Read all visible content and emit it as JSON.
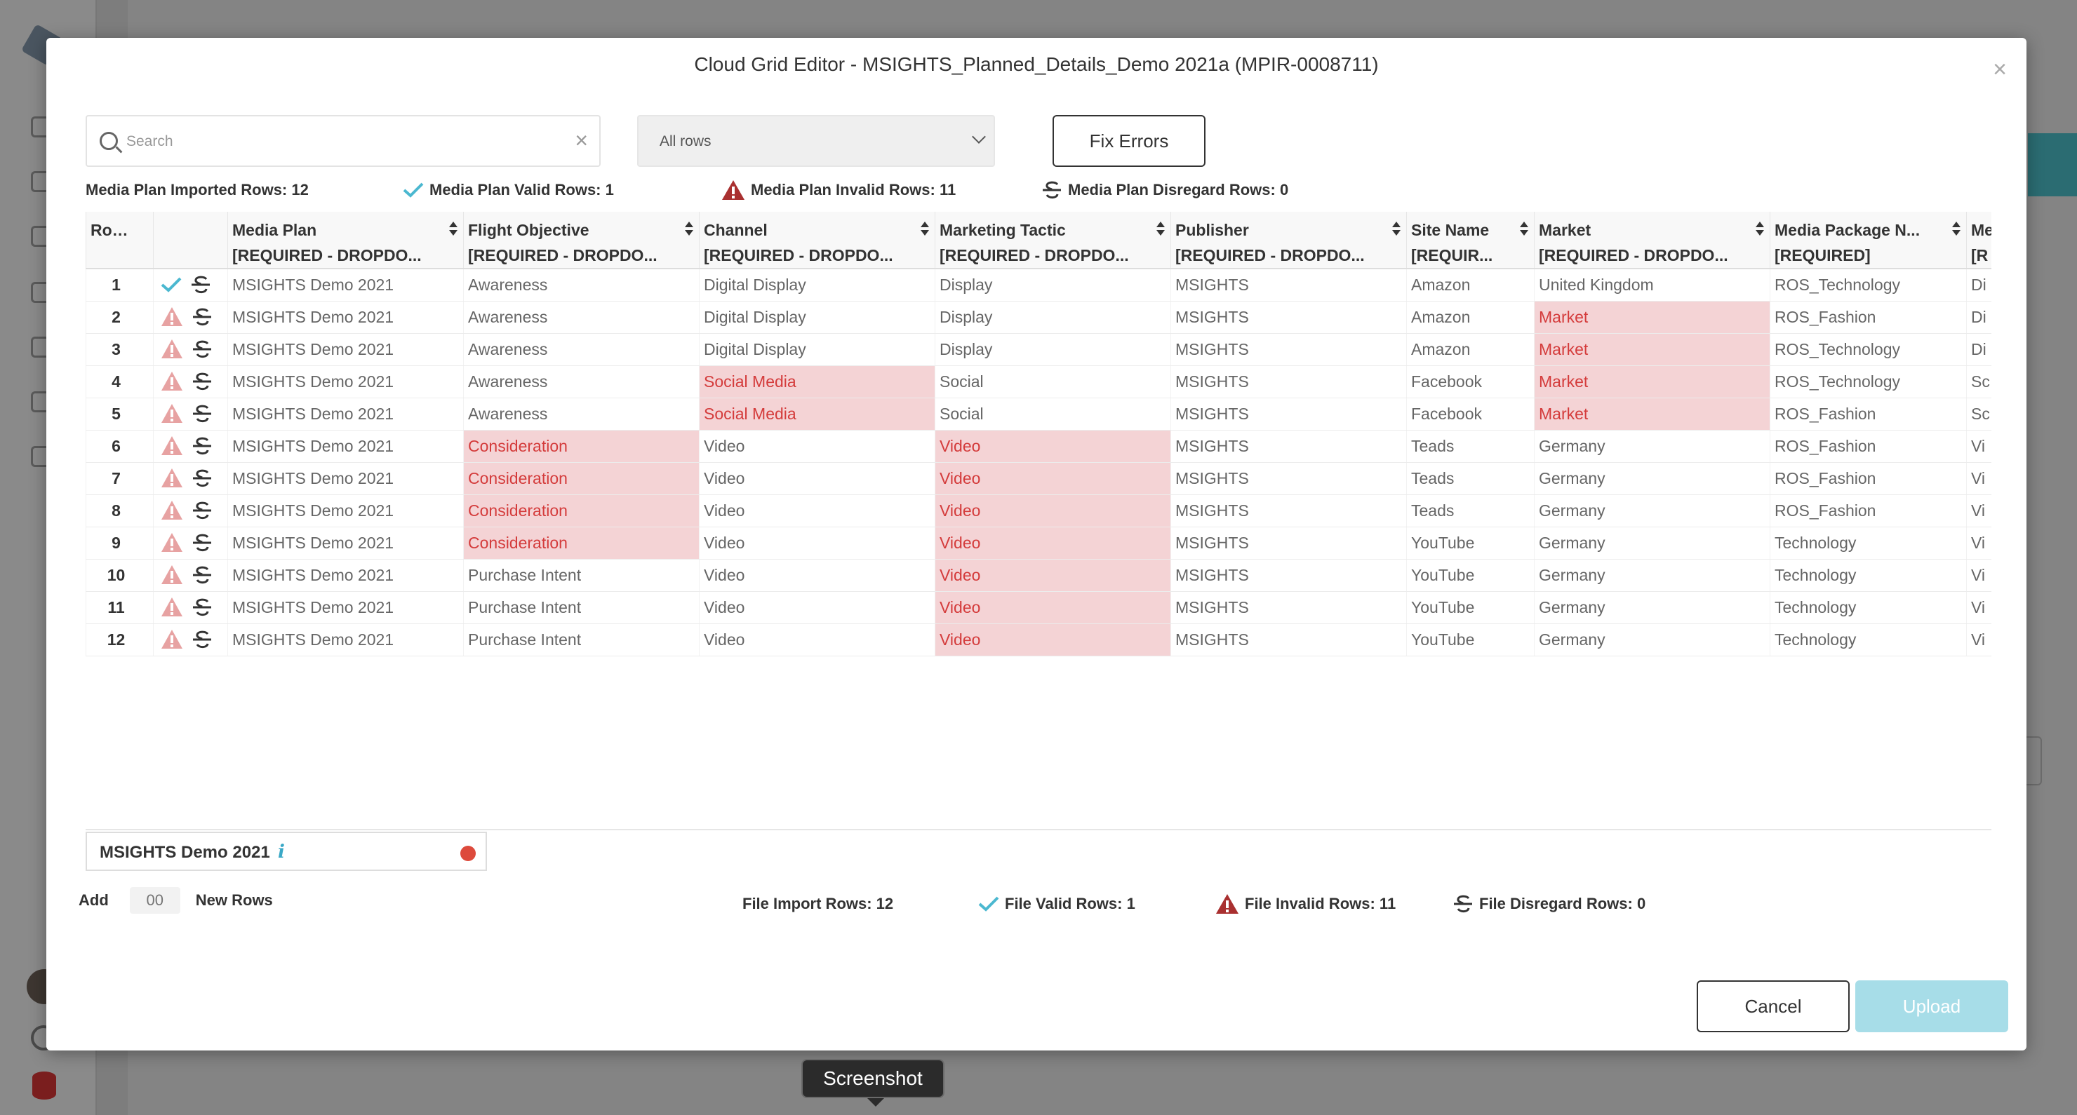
{
  "modal": {
    "title": "Cloud Grid Editor - MSIGHTS_Planned_Details_Demo 2021a (MPIR-0008711)",
    "close_label": "×"
  },
  "search": {
    "placeholder": "Search",
    "value": "",
    "clear_label": "×"
  },
  "filter": {
    "selected": "All rows"
  },
  "fix_errors_label": "Fix Errors",
  "summary": {
    "imported": "Media Plan Imported Rows: 12",
    "valid": "Media Plan Valid Rows: 1",
    "invalid": "Media Plan Invalid Rows: 11",
    "disregard": "Media Plan Disregard Rows: 0"
  },
  "colors": {
    "valid_check": "#4bb8d0",
    "warning": "#a93030",
    "error_bg": "#f4d3d5",
    "error_text": "#d43b3b",
    "upload_bg": "#a7dde8"
  },
  "table": {
    "columns": [
      {
        "line1": "Row #",
        "line2": ""
      },
      {
        "line1": "",
        "line2": ""
      },
      {
        "line1": "Media Plan",
        "line2": "[REQUIRED - DROPDO..."
      },
      {
        "line1": "Flight Objective",
        "line2": "[REQUIRED - DROPDO..."
      },
      {
        "line1": "Channel",
        "line2": "[REQUIRED - DROPDO..."
      },
      {
        "line1": "Marketing Tactic",
        "line2": "[REQUIRED - DROPDO..."
      },
      {
        "line1": "Publisher",
        "line2": "[REQUIRED - DROPDO..."
      },
      {
        "line1": "Site Name",
        "line2": "[REQUIR..."
      },
      {
        "line1": "Market",
        "line2": "[REQUIRED - DROPDO..."
      },
      {
        "line1": "Media Package N...",
        "line2": "[REQUIRED]"
      },
      {
        "line1": "Me",
        "line2": "[R"
      }
    ],
    "rows": [
      {
        "num": "1",
        "status": "valid",
        "cells": [
          "MSIGHTS Demo 2021",
          "Awareness",
          "Digital Display",
          "Display",
          "MSIGHTS",
          "Amazon",
          "United Kingdom",
          "ROS_Technology",
          "Di"
        ],
        "errors": []
      },
      {
        "num": "2",
        "status": "invalid",
        "cells": [
          "MSIGHTS Demo 2021",
          "Awareness",
          "Digital Display",
          "Display",
          "MSIGHTS",
          "Amazon",
          "Market",
          "ROS_Fashion",
          "Di"
        ],
        "errors": [
          6
        ]
      },
      {
        "num": "3",
        "status": "invalid",
        "cells": [
          "MSIGHTS Demo 2021",
          "Awareness",
          "Digital Display",
          "Display",
          "MSIGHTS",
          "Amazon",
          "Market",
          "ROS_Technology",
          "Di"
        ],
        "errors": [
          6
        ]
      },
      {
        "num": "4",
        "status": "invalid",
        "cells": [
          "MSIGHTS Demo 2021",
          "Awareness",
          "Social Media",
          "Social",
          "MSIGHTS",
          "Facebook",
          "Market",
          "ROS_Technology",
          "Sc"
        ],
        "errors": [
          2,
          6
        ]
      },
      {
        "num": "5",
        "status": "invalid",
        "cells": [
          "MSIGHTS Demo 2021",
          "Awareness",
          "Social Media",
          "Social",
          "MSIGHTS",
          "Facebook",
          "Market",
          "ROS_Fashion",
          "Sc"
        ],
        "errors": [
          2,
          6
        ]
      },
      {
        "num": "6",
        "status": "invalid",
        "cells": [
          "MSIGHTS Demo 2021",
          "Consideration",
          "Video",
          "Video",
          "MSIGHTS",
          "Teads",
          "Germany",
          "ROS_Fashion",
          "Vi"
        ],
        "errors": [
          1,
          3
        ]
      },
      {
        "num": "7",
        "status": "invalid",
        "cells": [
          "MSIGHTS Demo 2021",
          "Consideration",
          "Video",
          "Video",
          "MSIGHTS",
          "Teads",
          "Germany",
          "ROS_Fashion",
          "Vi"
        ],
        "errors": [
          1,
          3
        ]
      },
      {
        "num": "8",
        "status": "invalid",
        "cells": [
          "MSIGHTS Demo 2021",
          "Consideration",
          "Video",
          "Video",
          "MSIGHTS",
          "Teads",
          "Germany",
          "ROS_Fashion",
          "Vi"
        ],
        "errors": [
          1,
          3
        ]
      },
      {
        "num": "9",
        "status": "invalid",
        "cells": [
          "MSIGHTS Demo 2021",
          "Consideration",
          "Video",
          "Video",
          "MSIGHTS",
          "YouTube",
          "Germany",
          "Technology",
          "Vi"
        ],
        "errors": [
          1,
          3
        ]
      },
      {
        "num": "10",
        "status": "invalid",
        "cells": [
          "MSIGHTS Demo 2021",
          "Purchase Intent",
          "Video",
          "Video",
          "MSIGHTS",
          "YouTube",
          "Germany",
          "Technology",
          "Vi"
        ],
        "errors": [
          3
        ]
      },
      {
        "num": "11",
        "status": "invalid",
        "cells": [
          "MSIGHTS Demo 2021",
          "Purchase Intent",
          "Video",
          "Video",
          "MSIGHTS",
          "YouTube",
          "Germany",
          "Technology",
          "Vi"
        ],
        "errors": [
          3
        ]
      },
      {
        "num": "12",
        "status": "invalid",
        "cells": [
          "MSIGHTS Demo 2021",
          "Purchase Intent",
          "Video",
          "Video",
          "MSIGHTS",
          "YouTube",
          "Germany",
          "Technology",
          "Vi"
        ],
        "errors": [
          3
        ]
      }
    ]
  },
  "plan_field": {
    "name": "MSIGHTS Demo 2021",
    "info_icon": "i"
  },
  "add_rows": {
    "label_before": "Add",
    "placeholder": "00",
    "label_after": "New Rows"
  },
  "file_summary": {
    "import": "File Import Rows: 12",
    "valid": "File Valid Rows: 1",
    "invalid": "File Invalid Rows: 11",
    "disregard": "File Disregard Rows: 0"
  },
  "buttons": {
    "cancel": "Cancel",
    "upload": "Upload"
  },
  "tooltip": "Screenshot"
}
